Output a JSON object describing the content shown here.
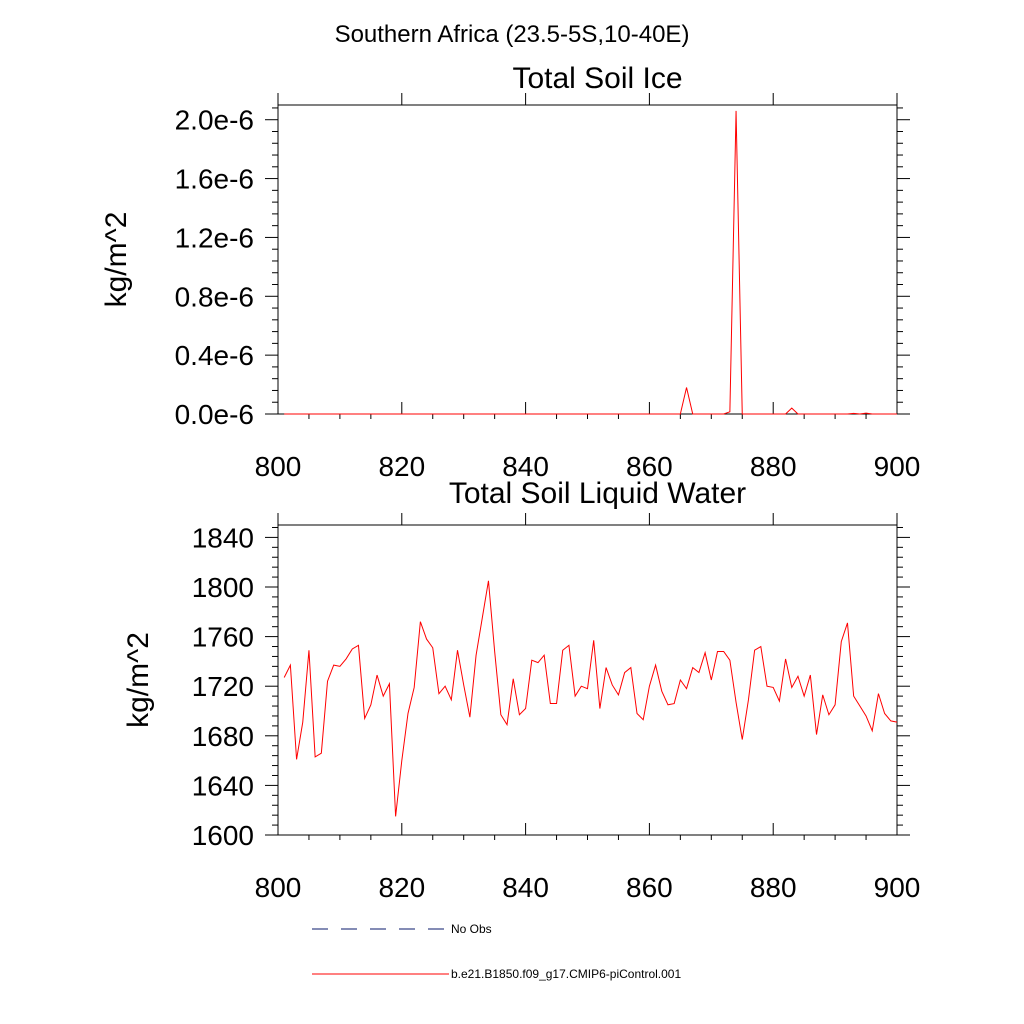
{
  "figure": {
    "suptitle": "Southern Africa (23.5-5S,10-40E)"
  },
  "chart_data": [
    {
      "type": "line",
      "title": "Total Soil Ice",
      "xlabel": "",
      "ylabel": "kg/m^2",
      "xlim": [
        800,
        900
      ],
      "ylim": [
        0,
        2.1e-06
      ],
      "xticks": [
        800,
        820,
        840,
        860,
        880,
        900
      ],
      "xtick_labels": [
        "800",
        "820",
        "840",
        "860",
        "880",
        "900"
      ],
      "yticks": [
        0,
        4e-07,
        8e-07,
        1.2e-06,
        1.6e-06,
        2e-06
      ],
      "ytick_labels": [
        "0.0e-6",
        "0.4e-6",
        "0.8e-6",
        "1.2e-6",
        "1.6e-6",
        "2.0e-6"
      ],
      "x": [
        801,
        802,
        803,
        804,
        805,
        806,
        807,
        808,
        809,
        810,
        811,
        812,
        813,
        814,
        815,
        816,
        817,
        818,
        819,
        820,
        821,
        822,
        823,
        824,
        825,
        826,
        827,
        828,
        829,
        830,
        831,
        832,
        833,
        834,
        835,
        836,
        837,
        838,
        839,
        840,
        841,
        842,
        843,
        844,
        845,
        846,
        847,
        848,
        849,
        850,
        851,
        852,
        853,
        854,
        855,
        856,
        857,
        858,
        859,
        860,
        861,
        862,
        863,
        864,
        865,
        866,
        867,
        868,
        869,
        870,
        871,
        872,
        873,
        874,
        875,
        876,
        877,
        878,
        879,
        880,
        881,
        882,
        883,
        884,
        885,
        886,
        887,
        888,
        889,
        890,
        891,
        892,
        893,
        894,
        895,
        896,
        897,
        898,
        899,
        900
      ],
      "series": [
        {
          "name": "b.e21.B1850.f09_g17.CMIP6-piControl.001",
          "color": "#ff0000",
          "values": [
            0,
            0,
            0,
            0,
            0,
            0,
            0,
            0,
            0,
            0,
            0,
            0,
            0,
            0,
            0,
            0,
            0,
            0,
            0,
            0,
            0,
            0,
            0,
            0,
            0,
            0,
            0,
            0,
            0,
            0,
            0,
            0,
            0,
            0,
            0,
            0,
            0,
            0,
            0,
            0,
            0,
            0,
            0,
            0,
            0,
            0,
            0,
            0,
            0,
            0,
            0,
            0,
            0,
            0,
            0,
            0,
            0,
            0,
            0,
            0,
            0,
            0,
            0,
            0,
            0,
            1.8e-07,
            0,
            0,
            0,
            0,
            0,
            0,
            1.5e-08,
            2.06e-06,
            0,
            0,
            0,
            0,
            0,
            0,
            0,
            0,
            4e-08,
            0,
            0,
            0,
            0,
            0,
            0,
            0,
            0,
            0,
            4e-09,
            0,
            6e-09,
            0,
            0,
            0,
            0,
            0
          ]
        }
      ]
    },
    {
      "type": "line",
      "title": "Total Soil Liquid Water",
      "xlabel": "",
      "ylabel": "kg/m^2",
      "xlim": [
        800,
        900
      ],
      "ylim": [
        1600,
        1850
      ],
      "xticks": [
        800,
        820,
        840,
        860,
        880,
        900
      ],
      "xtick_labels": [
        "800",
        "820",
        "840",
        "860",
        "880",
        "900"
      ],
      "yticks": [
        1600,
        1640,
        1680,
        1720,
        1760,
        1800,
        1840
      ],
      "ytick_labels": [
        "1600",
        "1640",
        "1680",
        "1720",
        "1760",
        "1800",
        "1840"
      ],
      "x": [
        801,
        802,
        803,
        804,
        805,
        806,
        807,
        808,
        809,
        810,
        811,
        812,
        813,
        814,
        815,
        816,
        817,
        818,
        819,
        820,
        821,
        822,
        823,
        824,
        825,
        826,
        827,
        828,
        829,
        830,
        831,
        832,
        833,
        834,
        835,
        836,
        837,
        838,
        839,
        840,
        841,
        842,
        843,
        844,
        845,
        846,
        847,
        848,
        849,
        850,
        851,
        852,
        853,
        854,
        855,
        856,
        857,
        858,
        859,
        860,
        861,
        862,
        863,
        864,
        865,
        866,
        867,
        868,
        869,
        870,
        871,
        872,
        873,
        874,
        875,
        876,
        877,
        878,
        879,
        880,
        881,
        882,
        883,
        884,
        885,
        886,
        887,
        888,
        889,
        890,
        891,
        892,
        893,
        894,
        895,
        896,
        897,
        898,
        899,
        900
      ],
      "series": [
        {
          "name": "b.e21.B1850.f09_g17.CMIP6-piControl.001",
          "color": "#ff0000",
          "values": [
            1727,
            1737,
            1661,
            1691,
            1749,
            1663,
            1666,
            1724,
            1737,
            1736,
            1742,
            1750,
            1753,
            1694,
            1705,
            1729,
            1712,
            1722,
            1615,
            1660,
            1698,
            1719,
            1772,
            1758,
            1751,
            1714,
            1720,
            1709,
            1749,
            1721,
            1695,
            1745,
            1775,
            1805,
            1748,
            1697,
            1689,
            1726,
            1697,
            1702,
            1741,
            1739,
            1745,
            1706,
            1706,
            1749,
            1753,
            1712,
            1720,
            1718,
            1757,
            1702,
            1735,
            1721,
            1713,
            1731,
            1735,
            1698,
            1693,
            1720,
            1737,
            1716,
            1705,
            1706,
            1725,
            1718,
            1735,
            1731,
            1747,
            1725,
            1748,
            1748,
            1741,
            1707,
            1677,
            1709,
            1749,
            1752,
            1720,
            1719,
            1708,
            1742,
            1719,
            1728,
            1712,
            1729,
            1681,
            1713,
            1697,
            1705,
            1756,
            1771,
            1712,
            1704,
            1696,
            1684,
            1714,
            1698,
            1692,
            1691
          ]
        }
      ]
    }
  ],
  "legend": {
    "items": [
      {
        "label": "No Obs",
        "color": "#0a1a6b",
        "style": "dashed"
      },
      {
        "label": "b.e21.B1850.f09_g17.CMIP6-piControl.001",
        "color": "#ff0000",
        "style": "solid"
      }
    ]
  }
}
